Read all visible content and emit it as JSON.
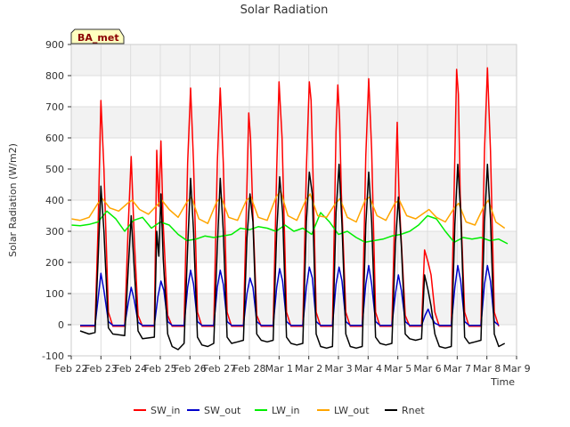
{
  "chart_data": {
    "type": "line",
    "title": "Solar Radiation",
    "xlabel": "Time",
    "ylabel": "Solar Radiation (W/m2)",
    "site_badge": "BA_met",
    "ylim": [
      -100,
      900
    ],
    "yticks": [
      -100,
      0,
      100,
      200,
      300,
      400,
      500,
      600,
      700,
      800,
      900
    ],
    "xlim": [
      0,
      15
    ],
    "xticks": [
      {
        "pos": 0,
        "label": "Feb 22"
      },
      {
        "pos": 1,
        "label": "Feb 23"
      },
      {
        "pos": 2,
        "label": "Feb 24"
      },
      {
        "pos": 3,
        "label": "Feb 25"
      },
      {
        "pos": 4,
        "label": "Feb 26"
      },
      {
        "pos": 5,
        "label": "Feb 27"
      },
      {
        "pos": 6,
        "label": "Feb 28"
      },
      {
        "pos": 7,
        "label": "Mar 1"
      },
      {
        "pos": 8,
        "label": "Mar 2"
      },
      {
        "pos": 9,
        "label": "Mar 3"
      },
      {
        "pos": 10,
        "label": "Mar 4"
      },
      {
        "pos": 11,
        "label": "Mar 5"
      },
      {
        "pos": 12,
        "label": "Mar 6"
      },
      {
        "pos": 13,
        "label": "Mar 7"
      },
      {
        "pos": 14,
        "label": "Mar 8"
      },
      {
        "pos": 15,
        "label": "Mar 9"
      }
    ],
    "grid": true,
    "legend_position": "bottom",
    "series": [
      {
        "name": "SW_in",
        "color": "#ff0000",
        "x": [
          0.3,
          0.8,
          0.9,
          1.0,
          1.1,
          1.25,
          1.4,
          1.8,
          1.92,
          2.02,
          2.12,
          2.25,
          2.4,
          2.8,
          2.88,
          2.95,
          3.02,
          3.1,
          3.25,
          3.4,
          3.8,
          3.92,
          4.02,
          4.12,
          4.25,
          4.4,
          4.8,
          4.92,
          5.02,
          5.12,
          5.25,
          5.4,
          5.8,
          5.92,
          5.98,
          6.04,
          6.12,
          6.25,
          6.4,
          6.8,
          6.92,
          7.0,
          7.1,
          7.25,
          7.4,
          7.8,
          7.92,
          8.02,
          8.08,
          8.14,
          8.25,
          8.4,
          8.8,
          8.92,
          8.98,
          9.04,
          9.1,
          9.25,
          9.4,
          9.8,
          9.92,
          10.02,
          10.12,
          10.25,
          10.4,
          10.8,
          10.92,
          10.98,
          11.04,
          11.1,
          11.25,
          11.4,
          11.8,
          11.9,
          12.02,
          12.12,
          12.25,
          12.4,
          12.8,
          12.92,
          12.98,
          13.04,
          13.1,
          13.25,
          13.4,
          13.8,
          13.92,
          14.02,
          14.12,
          14.25,
          14.4
        ],
        "values": [
          -5,
          -5,
          300,
          720,
          500,
          40,
          -5,
          -5,
          320,
          540,
          280,
          30,
          -5,
          -5,
          560,
          380,
          590,
          320,
          30,
          -5,
          -5,
          520,
          760,
          520,
          40,
          -5,
          -5,
          520,
          760,
          520,
          40,
          -5,
          -5,
          450,
          680,
          600,
          350,
          30,
          -5,
          -5,
          500,
          780,
          600,
          40,
          -5,
          -5,
          500,
          780,
          720,
          500,
          40,
          -5,
          -5,
          620,
          770,
          660,
          420,
          40,
          -5,
          -5,
          540,
          790,
          560,
          40,
          -5,
          -5,
          440,
          650,
          420,
          300,
          30,
          -5,
          -5,
          240,
          200,
          160,
          40,
          -5,
          -5,
          540,
          820,
          740,
          420,
          40,
          -5,
          -5,
          560,
          825,
          560,
          40,
          -5
        ]
      },
      {
        "name": "SW_out",
        "color": "#0000cc",
        "x": [
          0.3,
          0.8,
          0.9,
          1.0,
          1.1,
          1.25,
          1.4,
          1.8,
          1.92,
          2.02,
          2.12,
          2.25,
          2.4,
          2.8,
          2.92,
          3.02,
          3.12,
          3.25,
          3.4,
          3.8,
          3.92,
          4.02,
          4.12,
          4.25,
          4.4,
          4.8,
          4.92,
          5.02,
          5.12,
          5.25,
          5.4,
          5.8,
          5.92,
          6.02,
          6.12,
          6.25,
          6.4,
          6.8,
          6.92,
          7.02,
          7.12,
          7.25,
          7.4,
          7.8,
          7.92,
          8.02,
          8.12,
          8.25,
          8.4,
          8.8,
          8.92,
          9.02,
          9.12,
          9.25,
          9.4,
          9.8,
          9.92,
          10.02,
          10.12,
          10.25,
          10.4,
          10.8,
          10.92,
          11.02,
          11.12,
          11.25,
          11.4,
          11.8,
          11.92,
          12.02,
          12.12,
          12.25,
          12.4,
          12.8,
          12.92,
          13.02,
          13.12,
          13.25,
          13.4,
          13.8,
          13.92,
          14.02,
          14.12,
          14.25,
          14.4
        ],
        "values": [
          -2,
          -2,
          80,
          165,
          110,
          10,
          -2,
          -2,
          70,
          120,
          80,
          8,
          -2,
          -2,
          90,
          140,
          110,
          10,
          -2,
          -2,
          120,
          175,
          130,
          10,
          -2,
          -2,
          120,
          175,
          130,
          10,
          -2,
          -2,
          100,
          150,
          120,
          10,
          -2,
          -2,
          120,
          180,
          140,
          10,
          -2,
          -2,
          120,
          185,
          150,
          10,
          -2,
          -2,
          130,
          185,
          140,
          10,
          -2,
          -2,
          130,
          190,
          130,
          10,
          -2,
          -2,
          100,
          160,
          110,
          10,
          -2,
          -2,
          30,
          50,
          25,
          5,
          -2,
          -2,
          120,
          190,
          140,
          10,
          -2,
          -2,
          130,
          190,
          140,
          10,
          -2
        ]
      },
      {
        "name": "LW_in",
        "color": "#00ee00",
        "x": [
          0,
          0.3,
          0.6,
          0.9,
          1.2,
          1.5,
          1.8,
          2.1,
          2.4,
          2.7,
          3.0,
          3.3,
          3.6,
          3.9,
          4.2,
          4.5,
          4.8,
          5.1,
          5.4,
          5.7,
          6.0,
          6.3,
          6.6,
          6.9,
          7.2,
          7.5,
          7.8,
          8.1,
          8.4,
          8.7,
          9.0,
          9.3,
          9.6,
          9.9,
          10.2,
          10.5,
          10.8,
          11.1,
          11.4,
          11.7,
          12.0,
          12.3,
          12.6,
          12.9,
          13.2,
          13.5,
          13.8,
          14.1,
          14.4,
          14.7
        ],
        "values": [
          320,
          318,
          322,
          330,
          365,
          340,
          300,
          335,
          345,
          310,
          330,
          320,
          290,
          270,
          275,
          285,
          280,
          285,
          290,
          310,
          305,
          315,
          310,
          300,
          320,
          300,
          310,
          290,
          360,
          330,
          290,
          300,
          280,
          265,
          270,
          275,
          285,
          290,
          300,
          320,
          350,
          340,
          300,
          265,
          280,
          275,
          280,
          270,
          275,
          260
        ]
      },
      {
        "name": "LW_out",
        "color": "#ffa500",
        "x": [
          0,
          0.3,
          0.6,
          0.9,
          1.05,
          1.3,
          1.6,
          1.9,
          2.05,
          2.3,
          2.6,
          2.9,
          3.05,
          3.3,
          3.6,
          3.9,
          4.05,
          4.3,
          4.6,
          4.9,
          5.05,
          5.3,
          5.6,
          5.9,
          6.05,
          6.3,
          6.6,
          6.9,
          7.05,
          7.3,
          7.6,
          7.9,
          8.05,
          8.3,
          8.6,
          8.9,
          9.05,
          9.3,
          9.6,
          9.9,
          10.05,
          10.3,
          10.6,
          10.9,
          11.05,
          11.3,
          11.6,
          11.9,
          12.05,
          12.3,
          12.6,
          12.9,
          13.05,
          13.3,
          13.6,
          13.9,
          14.05,
          14.3,
          14.6
        ],
        "values": [
          340,
          335,
          345,
          390,
          405,
          375,
          365,
          390,
          400,
          370,
          355,
          385,
          400,
          370,
          345,
          395,
          410,
          340,
          325,
          395,
          410,
          345,
          335,
          400,
          410,
          345,
          335,
          410,
          430,
          350,
          335,
          400,
          420,
          350,
          345,
          390,
          405,
          345,
          330,
          400,
          410,
          350,
          335,
          390,
          400,
          350,
          340,
          360,
          370,
          345,
          330,
          375,
          390,
          330,
          320,
          380,
          400,
          330,
          310
        ]
      },
      {
        "name": "Rnet",
        "color": "#000000",
        "x": [
          0.3,
          0.6,
          0.8,
          0.9,
          1.0,
          1.1,
          1.25,
          1.4,
          1.8,
          1.92,
          2.02,
          2.12,
          2.25,
          2.4,
          2.8,
          2.88,
          2.95,
          3.02,
          3.1,
          3.25,
          3.4,
          3.6,
          3.8,
          3.92,
          4.02,
          4.12,
          4.25,
          4.4,
          4.6,
          4.8,
          4.92,
          5.02,
          5.12,
          5.25,
          5.4,
          5.6,
          5.8,
          5.92,
          6.02,
          6.12,
          6.25,
          6.4,
          6.6,
          6.8,
          6.92,
          7.02,
          7.12,
          7.25,
          7.4,
          7.6,
          7.8,
          7.92,
          8.02,
          8.12,
          8.25,
          8.4,
          8.6,
          8.8,
          8.92,
          9.02,
          9.12,
          9.25,
          9.4,
          9.6,
          9.8,
          9.92,
          10.02,
          10.12,
          10.25,
          10.4,
          10.6,
          10.8,
          10.92,
          11.02,
          11.12,
          11.25,
          11.4,
          11.6,
          11.8,
          11.9,
          12.02,
          12.12,
          12.25,
          12.4,
          12.6,
          12.8,
          12.92,
          13.02,
          13.12,
          13.25,
          13.4,
          13.6,
          13.8,
          13.92,
          14.02,
          14.12,
          14.25,
          14.4,
          14.6
        ],
        "values": [
          -20,
          -30,
          -25,
          200,
          445,
          300,
          -10,
          -30,
          -35,
          180,
          350,
          180,
          -20,
          -45,
          -40,
          300,
          220,
          420,
          210,
          -30,
          -70,
          -80,
          -60,
          250,
          470,
          300,
          -40,
          -65,
          -70,
          -60,
          250,
          470,
          300,
          -40,
          -60,
          -55,
          -50,
          280,
          420,
          330,
          -30,
          -50,
          -55,
          -50,
          300,
          475,
          360,
          -40,
          -60,
          -65,
          -60,
          330,
          490,
          420,
          -30,
          -70,
          -75,
          -70,
          360,
          515,
          320,
          -30,
          -70,
          -75,
          -70,
          320,
          490,
          330,
          -40,
          -60,
          -65,
          -60,
          260,
          410,
          250,
          -30,
          -45,
          -50,
          -45,
          160,
          110,
          60,
          -30,
          -70,
          -75,
          -70,
          320,
          515,
          360,
          -40,
          -60,
          -55,
          -50,
          330,
          515,
          340,
          -30,
          -70,
          -60
        ]
      }
    ]
  }
}
